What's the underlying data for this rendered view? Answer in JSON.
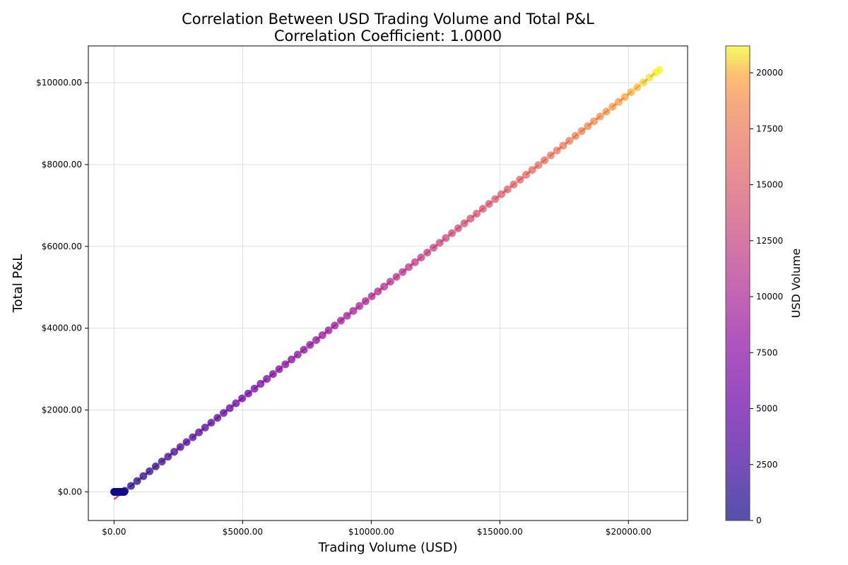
{
  "chart_data": {
    "type": "scatter",
    "title_line1": "Correlation Between USD Trading Volume and Total P&L",
    "title_line2": "Correlation Coefficient: 1.0000",
    "xlabel": "Trading Volume (USD)",
    "ylabel": "Total P&L",
    "xlim": [
      -1000,
      22300
    ],
    "ylim": [
      -700,
      10900
    ],
    "x_ticks": [
      {
        "value": 0,
        "label": "$0.00"
      },
      {
        "value": 5000,
        "label": "$5000.00"
      },
      {
        "value": 10000,
        "label": "$10000.00"
      },
      {
        "value": 15000,
        "label": "$15000.00"
      },
      {
        "value": 20000,
        "label": "$20000.00"
      }
    ],
    "y_ticks": [
      {
        "value": 0,
        "label": "$0.00"
      },
      {
        "value": 2000,
        "label": "$2000.00"
      },
      {
        "value": 4000,
        "label": "$4000.00"
      },
      {
        "value": 6000,
        "label": "$6000.00"
      },
      {
        "value": 8000,
        "label": "$8000.00"
      },
      {
        "value": 10000,
        "label": "$10000.00"
      }
    ],
    "grid": true,
    "colorbar": {
      "label": "USD Volume",
      "min": 0,
      "max": 21200,
      "ticks": [
        0,
        2500,
        5000,
        7500,
        10000,
        12500,
        15000,
        17500,
        20000
      ],
      "colormap": "plasma"
    },
    "trendline": {
      "slope": 0.495,
      "intercept": -180,
      "x_range": [
        0,
        21200
      ],
      "color": "#e03030",
      "style": "dashed"
    },
    "points": {
      "zero_pnl_x": [
        0,
        20,
        40,
        60,
        80,
        100,
        120,
        140,
        160,
        180,
        200,
        220,
        240,
        260,
        280,
        300,
        320,
        340,
        360,
        380,
        400
      ],
      "linear_x_start": 420,
      "linear_x_end": 21200,
      "linear_x_step": 240,
      "pnl_slope": 0.495,
      "pnl_intercept": -180
    }
  }
}
